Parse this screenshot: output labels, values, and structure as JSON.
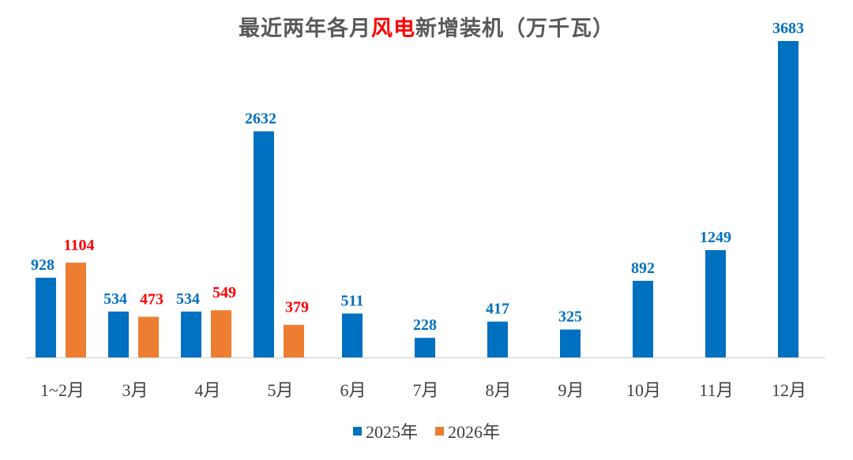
{
  "title": {
    "prefix": "最近两年各月",
    "highlight": "风电",
    "suffix": "新增装机（万千瓦）"
  },
  "colors": {
    "series_2025": "#0070c0",
    "series_2026": "#ed7d31",
    "label_2025": "#0070c0",
    "label_2026": "#ff0000",
    "title": "#595959",
    "highlight": "#ff0000",
    "axis": "#d9d9d9"
  },
  "chart_data": {
    "type": "bar",
    "title": "最近两年各月风电新增装机（万千瓦）",
    "categories": [
      "1~2月",
      "3月",
      "4月",
      "5月",
      "6月",
      "7月",
      "8月",
      "9月",
      "10月",
      "11月",
      "12月"
    ],
    "series": [
      {
        "name": "2025年",
        "values": [
          928,
          534,
          534,
          2632,
          511,
          228,
          417,
          325,
          892,
          1249,
          3683
        ]
      },
      {
        "name": "2026年",
        "values": [
          1104,
          473,
          549,
          379,
          null,
          null,
          null,
          null,
          null,
          null,
          null
        ]
      }
    ],
    "ylim": [
      0,
      3683
    ],
    "grid": false,
    "legend_position": "bottom"
  }
}
